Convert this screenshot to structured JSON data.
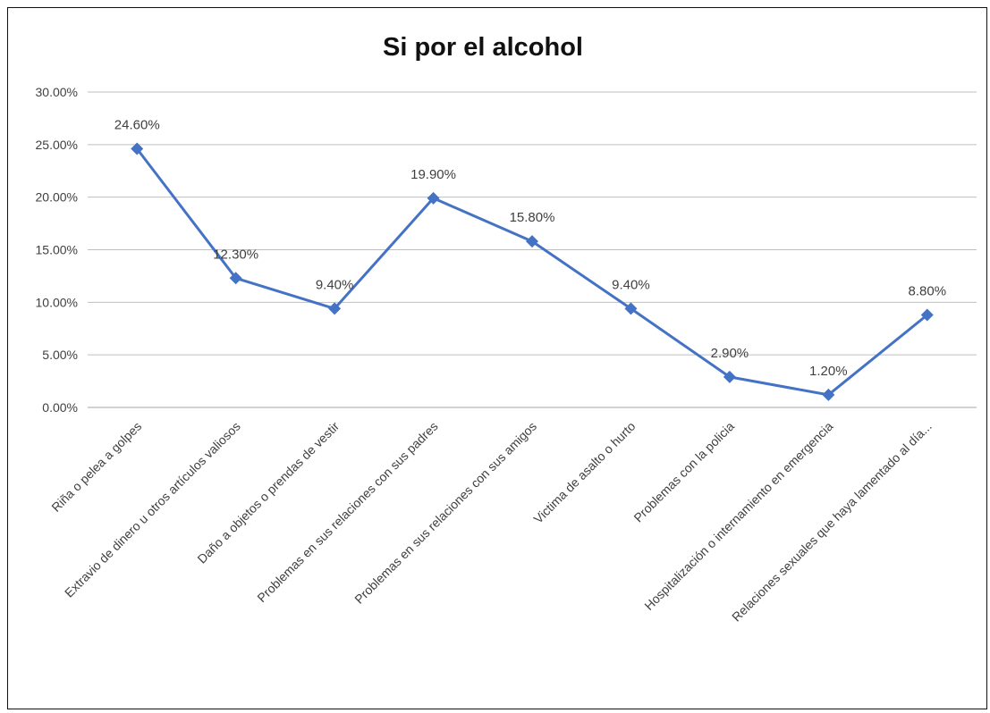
{
  "chart_data": {
    "type": "line",
    "title": "Si por el alcohol",
    "xlabel": "",
    "ylabel": "",
    "ylim": [
      0,
      0.3
    ],
    "y_ticks": [
      "0.00%",
      "5.00%",
      "10.00%",
      "15.00%",
      "20.00%",
      "25.00%",
      "30.00%"
    ],
    "grid": true,
    "legend": "none",
    "categories": [
      "Riña o pelea a golpes",
      "Extravio de dinero u otros artículos valiosos",
      "Daño a objetos o prendas de vestir",
      "Problemas en sus relaciones con sus padres",
      "Problemas en sus relaciones con sus amigos",
      "Victima de asalto o hurto",
      "Problemas con la policia",
      "Hospitalización o internamiento en emergencia",
      "Relaciones sexuales que haya lamentado al día..."
    ],
    "series": [
      {
        "values": [
          0.246,
          0.123,
          0.094,
          0.199,
          0.158,
          0.094,
          0.029,
          0.012,
          0.088
        ],
        "labels": [
          "24.60%",
          "12.30%",
          "9.40%",
          "19.90%",
          "15.80%",
          "9.40%",
          "2.90%",
          "1.20%",
          "8.80%"
        ],
        "color": "#4472c4"
      }
    ]
  }
}
